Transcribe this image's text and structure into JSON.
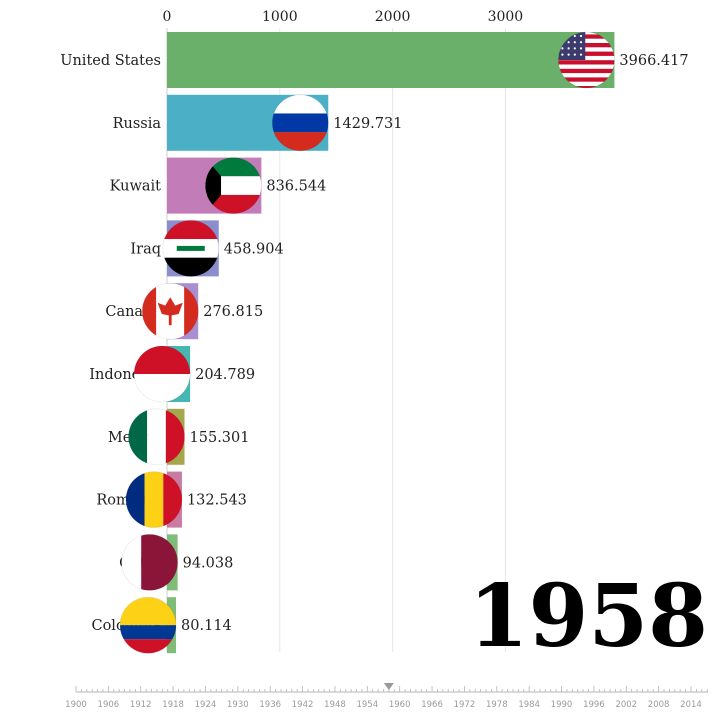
{
  "chart_data": {
    "type": "bar",
    "orientation": "horizontal",
    "categories": [
      "United States",
      "Russia",
      "Kuwait",
      "Iraq",
      "Canada",
      "Indonesia",
      "Mexico",
      "Romania",
      "Qatar",
      "Colombia"
    ],
    "values": [
      3966.417,
      1429.731,
      836.544,
      458.904,
      276.815,
      204.789,
      155.301,
      132.543,
      94.038,
      80.114
    ],
    "value_labels": [
      "3966.417",
      "1429.731",
      "836.544",
      "458.904",
      "276.815",
      "204.789",
      "155.301",
      "132.543",
      "94.038",
      "80.114"
    ],
    "colors": [
      "#6aaf6a",
      "#4bb0c6",
      "#c27cb8",
      "#8c8dcc",
      "#a98fd0",
      "#45b7b0",
      "#a6a64f",
      "#c97ba4",
      "#7fbc77",
      "#7fbc77"
    ],
    "flags": [
      "us-flag",
      "russia-flag",
      "kuwait-flag",
      "iraq-flag",
      "canada-flag",
      "indonesia-flag",
      "mexico-flag",
      "romania-flag",
      "qatar-flag",
      "colombia-flag"
    ],
    "xlim": [
      0,
      4600
    ],
    "xticks": [
      0,
      1000,
      2000,
      3000
    ],
    "xtick_labels": [
      "0",
      "1000",
      "2000",
      "3000"
    ],
    "grid": true,
    "year": "1958",
    "timeline": {
      "labels": [
        "1900",
        "1906",
        "1912",
        "1918",
        "1924",
        "1930",
        "1936",
        "1942",
        "1948",
        "1954",
        "1960",
        "1966",
        "1972",
        "1978",
        "1984",
        "1990",
        "1996",
        "2002",
        "2008",
        "2014"
      ],
      "current": 1958,
      "range": [
        1898,
        2020
      ]
    }
  }
}
